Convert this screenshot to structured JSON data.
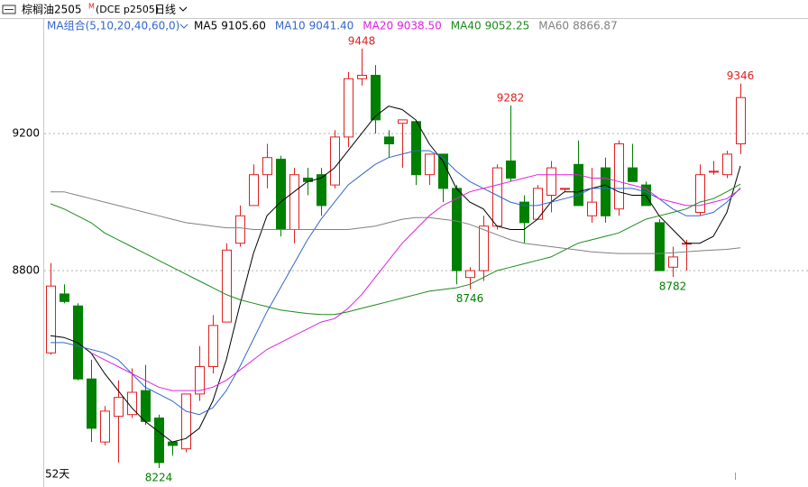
{
  "chart_data": {
    "type": "candlestick",
    "title": "棕榈油2505",
    "title_mark": "M",
    "subtitle": "(DCE p2505)",
    "period": "日线",
    "ma_group": "MA组合(5,10,20,40,60,0)",
    "span_label": "52天",
    "up_color": "#e02020",
    "down_color": "#008000",
    "ylim": [
      8195,
      9495
    ],
    "yticks": [
      8800,
      9200
    ],
    "grid": true,
    "open": [
      8560,
      8732,
      8697,
      8484,
      8300,
      8375,
      8380,
      8450,
      8370,
      8300,
      8280,
      8440,
      8520,
      8650,
      8880,
      8990,
      9080,
      9125,
      8920,
      9070,
      9080,
      9050,
      9190,
      9360,
      9370,
      9190,
      9230,
      9235,
      9080,
      9140,
      9040,
      8780,
      8800,
      8930,
      9120,
      9000,
      8950,
      9020,
      9040,
      9110,
      8960,
      9100,
      8980,
      9100,
      9050,
      8940,
      8810,
      8880,
      8970,
      9090,
      9080,
      9170
    ],
    "high": [
      8822,
      8760,
      8705,
      8540,
      8405,
      8480,
      8515,
      8525,
      8380,
      8300,
      8440,
      8580,
      8670,
      8880,
      8990,
      9110,
      9170,
      9135,
      9100,
      9100,
      9100,
      9210,
      9380,
      9448,
      9400,
      9210,
      9240,
      9240,
      9140,
      9140,
      9050,
      8810,
      8960,
      9110,
      9282,
      9020,
      9050,
      9120,
      9040,
      9180,
      9100,
      9130,
      9180,
      9170,
      9060,
      8950,
      8870,
      8890,
      9110,
      9120,
      9150,
      9346
    ],
    "low": [
      8555,
      8705,
      8480,
      8300,
      8290,
      8240,
      8370,
      8350,
      8224,
      8260,
      8270,
      8420,
      8500,
      8650,
      8870,
      8990,
      9040,
      8900,
      8880,
      9020,
      8960,
      9040,
      9160,
      9340,
      9200,
      9130,
      9100,
      9050,
      9050,
      9000,
      8760,
      8746,
      8770,
      8920,
      9060,
      8880,
      8950,
      8970,
      9030,
      8990,
      8940,
      8940,
      8960,
      9060,
      8990,
      8800,
      8782,
      8800,
      8960,
      9080,
      9070,
      9140
    ],
    "close": [
      8755,
      8710,
      8484,
      8340,
      8390,
      8430,
      8445,
      8360,
      8240,
      8290,
      8440,
      8520,
      8640,
      8860,
      8960,
      9080,
      9130,
      8920,
      9080,
      9060,
      8990,
      9190,
      9360,
      9370,
      9240,
      9170,
      9240,
      9080,
      9140,
      9040,
      8800,
      8800,
      8930,
      9100,
      9070,
      8940,
      9040,
      9100,
      9040,
      8990,
      9000,
      8960,
      9170,
      9060,
      8990,
      8800,
      8840,
      8880,
      9080,
      9090,
      9140,
      9305
    ],
    "series": [
      {
        "name": "MA5",
        "legend_value": "9105.60",
        "color": "#000000",
        "values": [
          8610,
          8605,
          8590,
          8560,
          8500,
          8450,
          8400,
          8360,
          8330,
          8300,
          8310,
          8340,
          8420,
          8540,
          8700,
          8850,
          8960,
          9000,
          9030,
          9060,
          9070,
          9100,
          9150,
          9200,
          9250,
          9280,
          9270,
          9240,
          9170,
          9120,
          9040,
          9000,
          8980,
          8930,
          8920,
          8920,
          8950,
          9000,
          9030,
          9030,
          9040,
          9050,
          9030,
          9020,
          9020,
          8960,
          8920,
          8880,
          8880,
          8900,
          8970,
          9105.6
        ]
      },
      {
        "name": "MA10",
        "legend_value": "9041.40",
        "color": "#3366cc",
        "values": [
          8590,
          8590,
          8580,
          8570,
          8560,
          8540,
          8500,
          8460,
          8440,
          8420,
          8390,
          8380,
          8400,
          8450,
          8520,
          8600,
          8680,
          8750,
          8820,
          8890,
          8950,
          9000,
          9050,
          9080,
          9110,
          9130,
          9140,
          9150,
          9150,
          9130,
          9090,
          9060,
          9040,
          9020,
          9000,
          8990,
          8990,
          9000,
          9010,
          9020,
          9040,
          9040,
          9040,
          9040,
          9030,
          9010,
          8980,
          8960,
          8960,
          8970,
          9000,
          9041.4
        ]
      },
      {
        "name": "MA20",
        "legend_value": "9038.50",
        "color": "#e020e0",
        "values": [
          null,
          null,
          null,
          8560,
          8540,
          8520,
          8500,
          8480,
          8460,
          8450,
          8450,
          8450,
          8460,
          8480,
          8510,
          8540,
          8570,
          8590,
          8610,
          8630,
          8650,
          8660,
          8690,
          8730,
          8780,
          8830,
          8880,
          8920,
          8960,
          8990,
          9010,
          9030,
          9040,
          9050,
          9060,
          9070,
          9080,
          9080,
          9080,
          9080,
          9070,
          9070,
          9060,
          9050,
          9040,
          9010,
          9000,
          8990,
          8990,
          9000,
          9010,
          9038.5
        ]
      },
      {
        "name": "MA40",
        "legend_value": "9052.25",
        "color": "#1a8a1a",
        "values": [
          8995,
          8980,
          8960,
          8940,
          8910,
          8890,
          8870,
          8850,
          8830,
          8810,
          8790,
          8770,
          8750,
          8730,
          8715,
          8705,
          8695,
          8685,
          8680,
          8675,
          8672,
          8672,
          8680,
          8690,
          8700,
          8710,
          8720,
          8730,
          8740,
          8745,
          8750,
          8760,
          8780,
          8800,
          8810,
          8820,
          8830,
          8840,
          8860,
          8880,
          8890,
          8900,
          8910,
          8930,
          8950,
          8960,
          8970,
          8980,
          9000,
          9010,
          9030,
          9052.25
        ]
      },
      {
        "name": "MA60",
        "legend_value": "8866.87",
        "color": "#808080",
        "values": [
          9030,
          9030,
          9020,
          9010,
          9000,
          8990,
          8980,
          8970,
          8960,
          8950,
          8940,
          8935,
          8930,
          8925,
          8925,
          8920,
          8920,
          8920,
          8920,
          8920,
          8920,
          8920,
          8920,
          8925,
          8930,
          8940,
          8950,
          8955,
          8955,
          8950,
          8945,
          8935,
          8920,
          8905,
          8890,
          8880,
          8875,
          8870,
          8865,
          8860,
          8855,
          8852,
          8850,
          8850,
          8850,
          8850,
          8852,
          8855,
          8858,
          8860,
          8862,
          8866.87
        ]
      }
    ],
    "annotations": [
      {
        "text": "9448",
        "color": "#e02020"
      },
      {
        "text": "9282",
        "color": "#e02020"
      },
      {
        "text": "9346",
        "color": "#e02020"
      },
      {
        "text": "8746",
        "color": "#008000"
      },
      {
        "text": "8782",
        "color": "#008000"
      },
      {
        "text": "8224",
        "color": "#008000"
      }
    ]
  }
}
